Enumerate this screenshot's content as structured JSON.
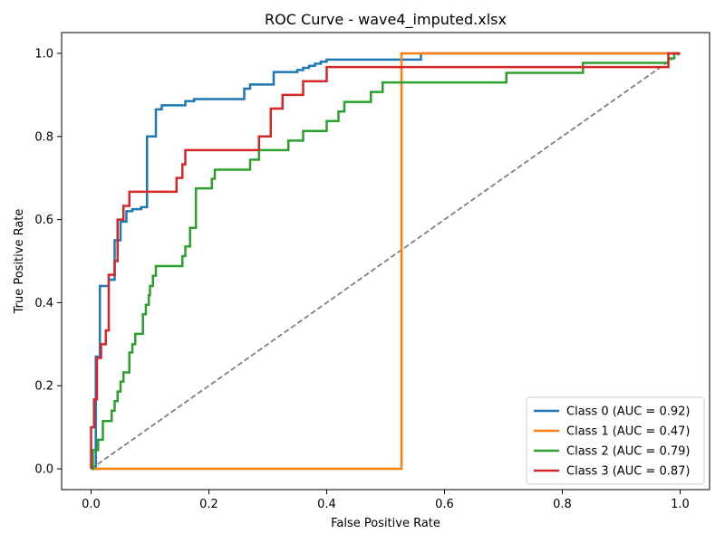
{
  "chart_data": {
    "type": "line",
    "title": "ROC Curve - wave4_imputed.xlsx",
    "xlabel": "False Positive Rate",
    "ylabel": "True Positive Rate",
    "xlim": [
      -0.05,
      1.05
    ],
    "ylim": [
      -0.05,
      1.05
    ],
    "xticks": [
      "0.0",
      "0.2",
      "0.4",
      "0.6",
      "0.8",
      "1.0"
    ],
    "yticks": [
      "0.0",
      "0.2",
      "0.4",
      "0.6",
      "0.8",
      "1.0"
    ],
    "grid": false,
    "legend_position": "bottom-right",
    "diagonal": {
      "color": "#808080",
      "style": "dashed",
      "x": [
        0,
        1
      ],
      "y": [
        0,
        1
      ]
    },
    "series": [
      {
        "name": "Class 0 (AUC = 0.92)",
        "color": "#1f77b4",
        "x": [
          0,
          0.008,
          0.008,
          0.015,
          0.015,
          0.03,
          0.03,
          0.04,
          0.04,
          0.05,
          0.05,
          0.06,
          0.06,
          0.07,
          0.07,
          0.085,
          0.085,
          0.095,
          0.095,
          0.11,
          0.11,
          0.12,
          0.12,
          0.16,
          0.16,
          0.175,
          0.175,
          0.26,
          0.26,
          0.27,
          0.27,
          0.31,
          0.31,
          0.35,
          0.35,
          0.36,
          0.36,
          0.37,
          0.37,
          0.38,
          0.38,
          0.39,
          0.39,
          0.4,
          0.4,
          0.43,
          0.43,
          0.56,
          0.56,
          1.0
        ],
        "y": [
          0,
          0,
          0.27,
          0.27,
          0.44,
          0.44,
          0.455,
          0.455,
          0.55,
          0.55,
          0.595,
          0.595,
          0.62,
          0.62,
          0.625,
          0.625,
          0.63,
          0.63,
          0.8,
          0.8,
          0.865,
          0.865,
          0.875,
          0.875,
          0.885,
          0.885,
          0.89,
          0.89,
          0.915,
          0.915,
          0.925,
          0.925,
          0.955,
          0.955,
          0.96,
          0.96,
          0.965,
          0.965,
          0.97,
          0.97,
          0.975,
          0.975,
          0.98,
          0.98,
          0.985,
          0.985,
          0.985,
          0.985,
          1.0,
          1.0
        ]
      },
      {
        "name": "Class 1 (AUC = 0.47)",
        "color": "#ff7f0e",
        "x": [
          0,
          0.527,
          0.527,
          1.0
        ],
        "y": [
          0,
          0,
          1.0,
          1.0
        ]
      },
      {
        "name": "Class 2 (AUC = 0.79)",
        "color": "#2ca02c",
        "x": [
          0,
          0.003,
          0.003,
          0.012,
          0.012,
          0.02,
          0.02,
          0.035,
          0.035,
          0.04,
          0.04,
          0.045,
          0.045,
          0.05,
          0.05,
          0.055,
          0.055,
          0.065,
          0.065,
          0.07,
          0.07,
          0.075,
          0.075,
          0.088,
          0.088,
          0.093,
          0.093,
          0.098,
          0.098,
          0.1,
          0.1,
          0.105,
          0.105,
          0.11,
          0.11,
          0.113,
          0.113,
          0.155,
          0.155,
          0.16,
          0.16,
          0.168,
          0.168,
          0.178,
          0.178,
          0.205,
          0.205,
          0.21,
          0.21,
          0.27,
          0.27,
          0.285,
          0.285,
          0.335,
          0.335,
          0.36,
          0.36,
          0.4,
          0.4,
          0.42,
          0.42,
          0.43,
          0.43,
          0.475,
          0.475,
          0.495,
          0.495,
          0.705,
          0.705,
          0.835,
          0.835,
          0.98,
          0.98,
          0.99,
          0.99,
          1.0
        ],
        "y": [
          0,
          0,
          0.045,
          0.045,
          0.07,
          0.07,
          0.115,
          0.115,
          0.14,
          0.14,
          0.163,
          0.163,
          0.186,
          0.186,
          0.21,
          0.21,
          0.232,
          0.232,
          0.28,
          0.28,
          0.3,
          0.3,
          0.325,
          0.325,
          0.372,
          0.372,
          0.395,
          0.395,
          0.418,
          0.418,
          0.44,
          0.44,
          0.465,
          0.465,
          0.488,
          0.488,
          0.488,
          0.488,
          0.512,
          0.512,
          0.535,
          0.535,
          0.58,
          0.58,
          0.675,
          0.675,
          0.698,
          0.698,
          0.72,
          0.72,
          0.744,
          0.744,
          0.767,
          0.767,
          0.79,
          0.79,
          0.813,
          0.813,
          0.837,
          0.837,
          0.86,
          0.86,
          0.883,
          0.883,
          0.907,
          0.907,
          0.93,
          0.93,
          0.953,
          0.953,
          0.977,
          0.977,
          0.988,
          0.988,
          1.0,
          1.0
        ]
      },
      {
        "name": "Class 3 (AUC = 0.87)",
        "color": "#d62728",
        "x": [
          0,
          0.0,
          0.0,
          0.005,
          0.005,
          0.01,
          0.01,
          0.017,
          0.017,
          0.025,
          0.025,
          0.03,
          0.03,
          0.04,
          0.04,
          0.045,
          0.045,
          0.055,
          0.055,
          0.065,
          0.065,
          0.145,
          0.145,
          0.155,
          0.155,
          0.16,
          0.16,
          0.285,
          0.285,
          0.305,
          0.305,
          0.325,
          0.325,
          0.36,
          0.36,
          0.4,
          0.4,
          0.98,
          0.98,
          1.0
        ],
        "y": [
          0,
          0,
          0.1,
          0.1,
          0.167,
          0.167,
          0.267,
          0.267,
          0.3,
          0.3,
          0.333,
          0.333,
          0.467,
          0.467,
          0.5,
          0.5,
          0.6,
          0.6,
          0.633,
          0.633,
          0.667,
          0.667,
          0.7,
          0.7,
          0.733,
          0.733,
          0.767,
          0.767,
          0.8,
          0.8,
          0.867,
          0.867,
          0.9,
          0.9,
          0.933,
          0.933,
          0.967,
          0.967,
          1.0,
          1.0
        ]
      }
    ]
  }
}
